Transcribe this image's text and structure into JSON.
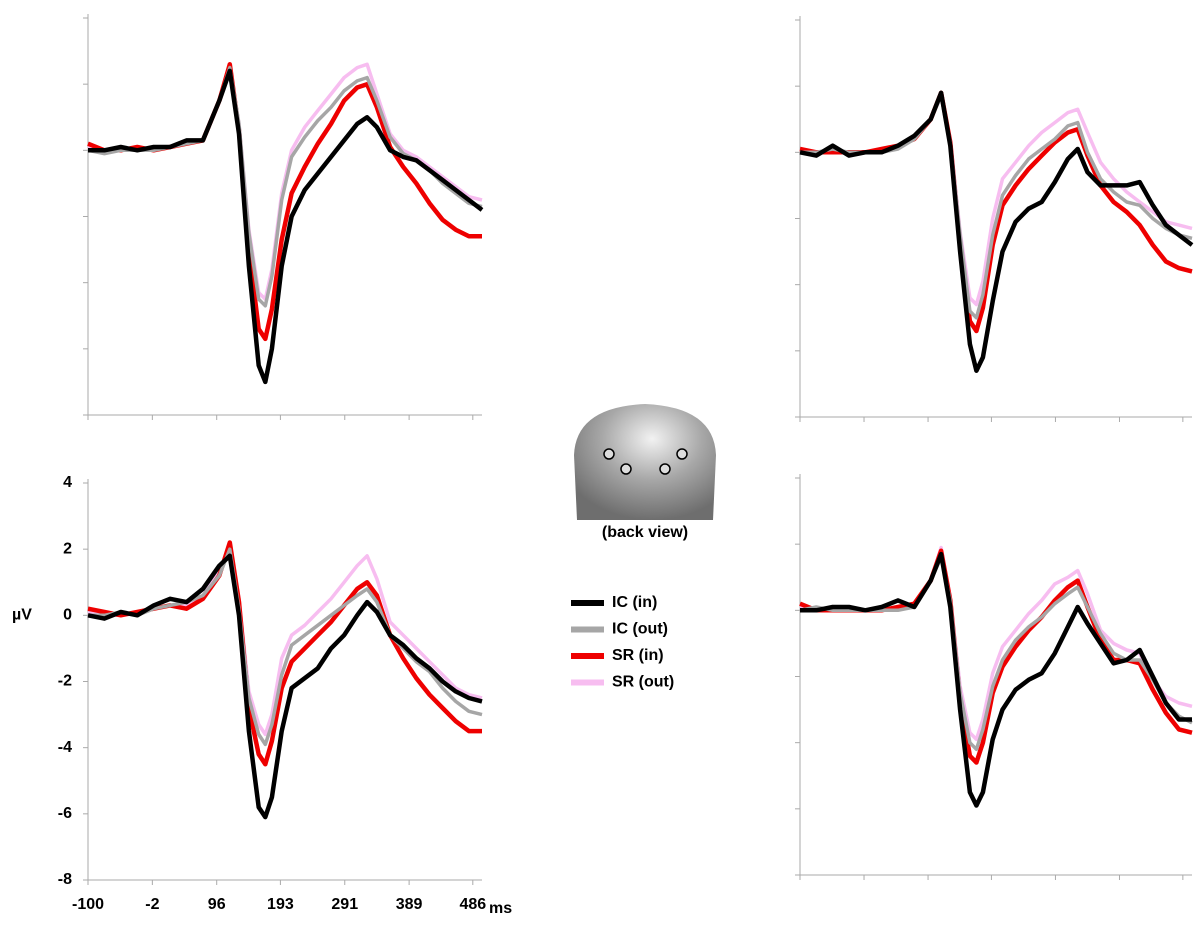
{
  "chart_data": [
    {
      "type": "line",
      "x": [
        -100,
        -75,
        -50,
        -25,
        0,
        25,
        50,
        75,
        100,
        116,
        130,
        145,
        160,
        170,
        180,
        195,
        210,
        230,
        250,
        270,
        290,
        310,
        325,
        340,
        360,
        380,
        400,
        420,
        440,
        460,
        480,
        500
      ],
      "xlim": [
        -100,
        500
      ],
      "ylim": [
        -8,
        4
      ],
      "yticks": [
        -8,
        -6,
        -4,
        -2,
        0,
        2,
        4
      ],
      "xticks": [
        -100,
        -2,
        96,
        193,
        291,
        389,
        486
      ],
      "series": [
        {
          "color": "#000000",
          "values": [
            0,
            0,
            0.1,
            0,
            0.1,
            0.1,
            0.3,
            0.3,
            1.5,
            2.4,
            0.5,
            -3.5,
            -6.5,
            -7.0,
            -6.0,
            -3.5,
            -2.0,
            -1.2,
            -0.7,
            -0.2,
            0.3,
            0.8,
            1.0,
            0.7,
            0.0,
            -0.2,
            -0.3,
            -0.6,
            -0.9,
            -1.2,
            -1.5,
            -1.8
          ]
        },
        {
          "color": "#a6a6a6",
          "values": [
            0,
            -0.1,
            0,
            0,
            0,
            0.1,
            0.2,
            0.3,
            1.5,
            2.5,
            0.8,
            -2.5,
            -4.5,
            -4.7,
            -3.8,
            -1.5,
            -0.2,
            0.4,
            0.9,
            1.3,
            1.8,
            2.1,
            2.2,
            1.5,
            0.4,
            -0.1,
            -0.3,
            -0.6,
            -1.0,
            -1.3,
            -1.6,
            -1.7
          ]
        },
        {
          "color": "#ee0000",
          "values": [
            0.2,
            0,
            0,
            0.1,
            0,
            0.1,
            0.2,
            0.3,
            1.5,
            2.6,
            0.6,
            -3.0,
            -5.4,
            -5.7,
            -4.8,
            -2.7,
            -1.3,
            -0.5,
            0.2,
            0.8,
            1.5,
            1.9,
            2.0,
            1.3,
            0.1,
            -0.5,
            -1.0,
            -1.6,
            -2.1,
            -2.4,
            -2.6,
            -2.6
          ]
        },
        {
          "color": "#f7bdf0",
          "values": [
            0.1,
            0,
            0,
            0,
            0,
            0.1,
            0.2,
            0.3,
            1.5,
            2.5,
            0.8,
            -2.4,
            -4.3,
            -4.5,
            -3.6,
            -1.3,
            0.0,
            0.7,
            1.2,
            1.7,
            2.2,
            2.5,
            2.6,
            1.7,
            0.5,
            0.0,
            -0.2,
            -0.5,
            -0.8,
            -1.1,
            -1.4,
            -1.5
          ]
        }
      ]
    },
    {
      "type": "line",
      "x": [
        -100,
        -75,
        -50,
        -25,
        0,
        25,
        50,
        75,
        100,
        116,
        130,
        145,
        160,
        170,
        180,
        195,
        210,
        230,
        250,
        270,
        290,
        310,
        325,
        340,
        360,
        380,
        400,
        420,
        440,
        460,
        480,
        500
      ],
      "xlim": [
        -100,
        500
      ],
      "ylim": [
        -8,
        4
      ],
      "yticks": [
        -8,
        -6,
        -4,
        -2,
        0,
        2,
        4
      ],
      "xticks": [
        -100,
        -2,
        96,
        193,
        291,
        389,
        486
      ],
      "series": [
        {
          "color": "#000000",
          "values": [
            0,
            -0.1,
            0.2,
            -0.1,
            0,
            0,
            0.2,
            0.5,
            1.0,
            1.8,
            0.2,
            -3.0,
            -5.8,
            -6.6,
            -6.2,
            -4.5,
            -3.0,
            -2.1,
            -1.7,
            -1.5,
            -0.9,
            -0.2,
            0.1,
            -0.6,
            -1.0,
            -1.0,
            -1.0,
            -0.9,
            -1.6,
            -2.2,
            -2.5,
            -2.8
          ]
        },
        {
          "color": "#a6a6a6",
          "values": [
            0,
            0,
            0.1,
            0,
            0,
            0,
            0.1,
            0.4,
            1.0,
            1.7,
            0.3,
            -2.5,
            -4.8,
            -5.0,
            -4.3,
            -2.5,
            -1.3,
            -0.7,
            -0.2,
            0.1,
            0.4,
            0.8,
            0.9,
            0.0,
            -0.8,
            -1.2,
            -1.5,
            -1.6,
            -2.0,
            -2.3,
            -2.5,
            -2.6
          ]
        },
        {
          "color": "#ee0000",
          "values": [
            0.1,
            0,
            0,
            0,
            0,
            0.1,
            0.2,
            0.4,
            1.0,
            1.8,
            0.3,
            -2.8,
            -5.1,
            -5.4,
            -4.7,
            -2.8,
            -1.6,
            -1.0,
            -0.5,
            -0.1,
            0.3,
            0.6,
            0.7,
            -0.1,
            -1.0,
            -1.5,
            -1.8,
            -2.2,
            -2.8,
            -3.3,
            -3.5,
            -3.6
          ]
        },
        {
          "color": "#f7bdf0",
          "values": [
            0,
            0,
            0,
            0,
            0,
            0.1,
            0.2,
            0.4,
            1.0,
            1.7,
            0.4,
            -2.4,
            -4.4,
            -4.6,
            -3.9,
            -2.0,
            -0.8,
            -0.3,
            0.2,
            0.6,
            0.9,
            1.2,
            1.3,
            0.6,
            -0.3,
            -0.8,
            -1.2,
            -1.5,
            -1.8,
            -2.1,
            -2.2,
            -2.3
          ]
        }
      ]
    },
    {
      "type": "line",
      "ylabel": "µV",
      "xunit": "ms",
      "tick_labels": true,
      "x": [
        -100,
        -75,
        -50,
        -25,
        0,
        25,
        50,
        75,
        100,
        116,
        130,
        145,
        160,
        170,
        180,
        195,
        210,
        230,
        250,
        270,
        290,
        310,
        325,
        340,
        360,
        380,
        400,
        420,
        440,
        460,
        480,
        500
      ],
      "xlim": [
        -100,
        500
      ],
      "ylim": [
        -8,
        4
      ],
      "yticks": [
        -8,
        -6,
        -4,
        -2,
        0,
        2,
        4
      ],
      "xticks": [
        -100,
        -2,
        96,
        193,
        291,
        389,
        486
      ],
      "series": [
        {
          "name": "IC (in)",
          "color": "#000000",
          "values": [
            0,
            -0.1,
            0.1,
            0,
            0.3,
            0.5,
            0.4,
            0.8,
            1.5,
            1.8,
            0,
            -3.5,
            -5.8,
            -6.1,
            -5.5,
            -3.5,
            -2.2,
            -1.9,
            -1.6,
            -1.0,
            -0.6,
            0.0,
            0.4,
            0.1,
            -0.6,
            -0.9,
            -1.3,
            -1.6,
            -2.0,
            -2.3,
            -2.5,
            -2.6
          ]
        },
        {
          "name": "IC (out)",
          "color": "#a6a6a6",
          "values": [
            0,
            0,
            0.1,
            0,
            0.2,
            0.3,
            0.4,
            0.6,
            1.2,
            2.0,
            0.2,
            -2.5,
            -3.6,
            -3.9,
            -3.3,
            -1.8,
            -0.9,
            -0.6,
            -0.3,
            0,
            0.3,
            0.6,
            0.8,
            0.4,
            -0.6,
            -1.0,
            -1.4,
            -1.7,
            -2.2,
            -2.6,
            -2.9,
            -3.0
          ]
        },
        {
          "name": "SR (in)",
          "color": "#ee0000",
          "values": [
            0.2,
            0.1,
            0,
            0.1,
            0.2,
            0.3,
            0.2,
            0.5,
            1.2,
            2.2,
            0.4,
            -2.8,
            -4.2,
            -4.5,
            -3.8,
            -2.2,
            -1.4,
            -1.0,
            -0.6,
            -0.2,
            0.3,
            0.8,
            1.0,
            0.6,
            -0.6,
            -1.3,
            -1.9,
            -2.4,
            -2.8,
            -3.2,
            -3.5,
            -3.5
          ]
        },
        {
          "name": "SR (out)",
          "color": "#f7bdf0",
          "values": [
            0.1,
            0,
            0,
            0.1,
            0.2,
            0.3,
            0.3,
            0.6,
            1.3,
            2.1,
            0.5,
            -2.3,
            -3.3,
            -3.6,
            -3.0,
            -1.3,
            -0.6,
            -0.3,
            0.1,
            0.5,
            1.0,
            1.5,
            1.8,
            1.1,
            -0.2,
            -0.6,
            -1.0,
            -1.4,
            -1.8,
            -2.2,
            -2.4,
            -2.5
          ]
        }
      ]
    },
    {
      "type": "line",
      "x": [
        -100,
        -75,
        -50,
        -25,
        0,
        25,
        50,
        75,
        100,
        116,
        130,
        145,
        160,
        170,
        180,
        195,
        210,
        230,
        250,
        270,
        290,
        310,
        325,
        340,
        360,
        380,
        400,
        420,
        440,
        460,
        480,
        500
      ],
      "xlim": [
        -100,
        500
      ],
      "ylim": [
        -8,
        4
      ],
      "yticks": [
        -8,
        -6,
        -4,
        -2,
        0,
        2,
        4
      ],
      "xticks": [
        -100,
        -2,
        96,
        193,
        291,
        389,
        486
      ],
      "series": [
        {
          "color": "#000000",
          "values": [
            0,
            0,
            0.1,
            0.1,
            0,
            0.1,
            0.3,
            0.1,
            0.9,
            1.7,
            0.1,
            -3.0,
            -5.5,
            -5.9,
            -5.5,
            -3.9,
            -3.0,
            -2.4,
            -2.1,
            -1.9,
            -1.3,
            -0.5,
            0.1,
            -0.4,
            -1.0,
            -1.6,
            -1.5,
            -1.2,
            -2.0,
            -2.8,
            -3.3,
            -3.3
          ]
        },
        {
          "color": "#a6a6a6",
          "values": [
            0,
            0.1,
            0,
            0,
            0,
            0,
            0,
            0.1,
            0.9,
            1.6,
            0.3,
            -2.5,
            -4.0,
            -4.2,
            -3.6,
            -2.3,
            -1.5,
            -0.9,
            -0.5,
            -0.2,
            0.2,
            0.5,
            0.7,
            0.1,
            -0.7,
            -1.3,
            -1.5,
            -1.5,
            -2.1,
            -2.8,
            -3.2,
            -3.4
          ]
        },
        {
          "color": "#ee0000",
          "values": [
            0.2,
            0,
            0,
            0,
            0,
            0,
            0.1,
            0.2,
            0.9,
            1.8,
            0.3,
            -2.7,
            -4.4,
            -4.6,
            -4.0,
            -2.5,
            -1.7,
            -1.1,
            -0.6,
            -0.2,
            0.3,
            0.7,
            0.9,
            0.1,
            -0.9,
            -1.5,
            -1.5,
            -1.6,
            -2.4,
            -3.1,
            -3.6,
            -3.7
          ]
        },
        {
          "color": "#f7bdf0",
          "values": [
            0.1,
            0,
            0,
            0,
            0,
            0,
            0.1,
            0.2,
            0.9,
            1.9,
            0.4,
            -2.3,
            -3.7,
            -3.9,
            -3.3,
            -1.9,
            -1.1,
            -0.6,
            -0.1,
            0.3,
            0.8,
            1.0,
            1.2,
            0.5,
            -0.6,
            -1.0,
            -1.2,
            -1.3,
            -2.1,
            -2.6,
            -2.8,
            -2.9
          ]
        }
      ]
    }
  ],
  "head_caption": "(back view)"
}
